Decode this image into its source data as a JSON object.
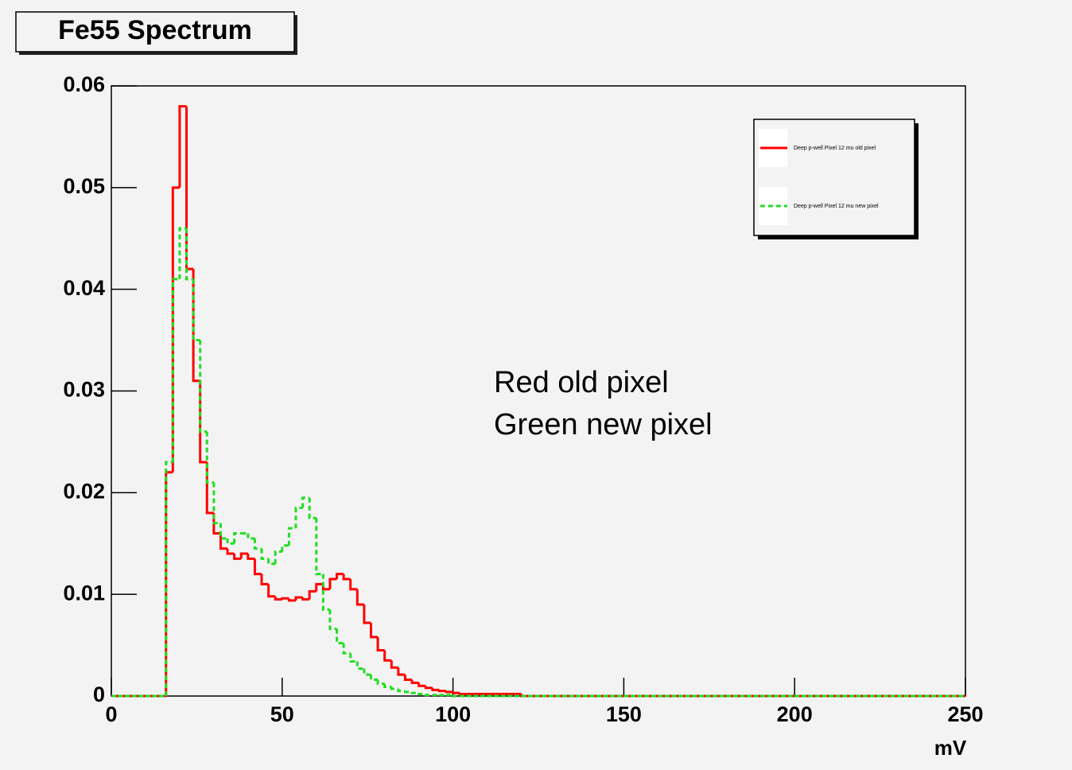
{
  "chart_data": {
    "type": "histogram",
    "title": "Fe55 Spectrum",
    "xlabel": "mV",
    "annotations": [
      "Red old pixel",
      "Green new pixel"
    ],
    "legend": "top-right",
    "bins": [
      0,
      2,
      4,
      6,
      8,
      10,
      12,
      14,
      16,
      18,
      20,
      22,
      24,
      26,
      28,
      30,
      32,
      34,
      36,
      38,
      40,
      42,
      44,
      46,
      48,
      50,
      52,
      54,
      56,
      58,
      60,
      62,
      64,
      66,
      68,
      70,
      72,
      74,
      76,
      78,
      80,
      82,
      84,
      86,
      88,
      90,
      92,
      94,
      96,
      98,
      100,
      102,
      104,
      106,
      108,
      110,
      112,
      114,
      116,
      118,
      120,
      122,
      124,
      126,
      128,
      130,
      132,
      134,
      136,
      138,
      140,
      142,
      144,
      146,
      148,
      150,
      152,
      154,
      156,
      158,
      160,
      162,
      164,
      166,
      168,
      170,
      172,
      174,
      176,
      178,
      180,
      182,
      184,
      186,
      188,
      190,
      192,
      194,
      196,
      198,
      200,
      202,
      204,
      206,
      208,
      210,
      212,
      214,
      216,
      218,
      220,
      222,
      224,
      226,
      228,
      230,
      232,
      234,
      236,
      238,
      240,
      242,
      244,
      246,
      248,
      250
    ],
    "series": [
      {
        "name": "Deep p-well Pixel 12 mu old pixel",
        "color": "#ff0000",
        "dashed": false,
        "values": [
          0,
          0,
          0,
          0,
          0,
          0,
          0,
          0,
          0.022,
          0.05,
          0.058,
          0.042,
          0.031,
          0.023,
          0.018,
          0.016,
          0.0145,
          0.014,
          0.0135,
          0.014,
          0.0135,
          0.012,
          0.011,
          0.0098,
          0.0095,
          0.0096,
          0.0094,
          0.0097,
          0.0095,
          0.0103,
          0.011,
          0.0105,
          0.0115,
          0.012,
          0.0115,
          0.0105,
          0.009,
          0.0072,
          0.0058,
          0.0045,
          0.0035,
          0.0028,
          0.0021,
          0.0016,
          0.0013,
          0.001,
          0.0008,
          0.0006,
          0.0005,
          0.0004,
          0.0003,
          0.0002,
          0.0002,
          0.0002,
          0.0002,
          0.0002,
          0.0002,
          0.0002,
          0.0002,
          0.0002,
          0,
          0,
          0,
          0,
          0,
          0,
          0,
          0,
          0,
          0,
          0,
          0,
          0,
          0,
          0,
          0,
          0,
          0,
          0,
          0,
          0,
          0,
          0,
          0,
          0,
          0,
          0,
          0,
          0,
          0,
          0,
          0,
          0,
          0,
          0,
          0,
          0,
          0,
          0,
          0,
          0,
          0,
          0,
          0,
          0,
          0,
          0,
          0,
          0,
          0,
          0,
          0,
          0,
          0,
          0,
          0,
          0,
          0,
          0,
          0,
          0,
          0,
          0,
          0,
          0,
          0,
          0,
          0,
          0,
          0,
          0
        ]
      },
      {
        "name": "Deep p-well Pixel 12 mu new pixel",
        "color": "#22dd22",
        "dashed": true,
        "values": [
          0,
          0,
          0,
          0,
          0,
          0,
          0,
          0,
          0.023,
          0.041,
          0.046,
          0.041,
          0.035,
          0.026,
          0.021,
          0.017,
          0.0155,
          0.015,
          0.016,
          0.016,
          0.0155,
          0.0145,
          0.0135,
          0.013,
          0.0142,
          0.0148,
          0.0165,
          0.0185,
          0.0195,
          0.0175,
          0.012,
          0.0085,
          0.0066,
          0.0052,
          0.0042,
          0.0034,
          0.0027,
          0.0021,
          0.0016,
          0.0012,
          0.0009,
          0.0007,
          0.0005,
          0.0004,
          0.0003,
          0.0002,
          0.0001,
          0.0001,
          0.0001,
          0.0001,
          0,
          0,
          0,
          0,
          0,
          0,
          0,
          0,
          0,
          0,
          0,
          0,
          0,
          0,
          0,
          0,
          0,
          0,
          0,
          0,
          0,
          0,
          0,
          0,
          0,
          0,
          0,
          0,
          0,
          0,
          0,
          0,
          0,
          0,
          0,
          0,
          0,
          0,
          0,
          0,
          0,
          0,
          0,
          0,
          0,
          0,
          0,
          0,
          0,
          0,
          0,
          0,
          0,
          0,
          0,
          0,
          0,
          0,
          0,
          0,
          0,
          0,
          0,
          0,
          0,
          0,
          0,
          0,
          0,
          0,
          0,
          0,
          0,
          0,
          0
        ]
      }
    ],
    "xlim": [
      0,
      250
    ],
    "xticks": [
      0,
      50,
      100,
      150,
      200,
      250
    ],
    "ylim": [
      0,
      0.06
    ],
    "yticks": [
      0,
      0.01,
      0.02,
      0.03,
      0.04,
      0.05,
      0.06
    ]
  }
}
